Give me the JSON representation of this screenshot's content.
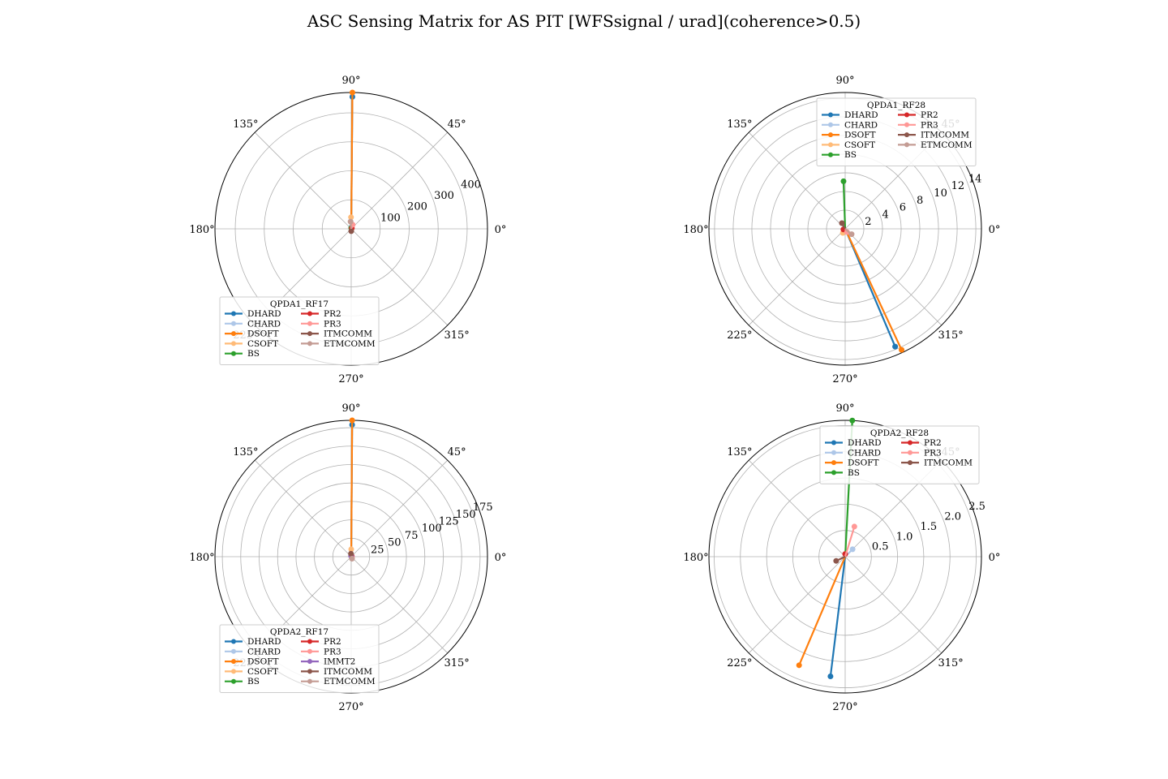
{
  "title": "ASC Sensing Matrix for AS PIT [WFSsignal / urad](coherence>0.5)",
  "chart_data": [
    {
      "type": "polar",
      "legend_title": "QPDA1_RF17",
      "legend_placement": "lower-left",
      "rmax": 470,
      "rticks": [
        100,
        200,
        300,
        400
      ],
      "rtick_labels": [
        "100",
        "200",
        "300",
        "400"
      ],
      "angle_tick_labels": [
        "0°",
        "45°",
        "90°",
        "135°",
        "180°",
        "225°",
        "270°",
        "315°"
      ],
      "series": [
        {
          "name": "DHARD",
          "color": "#1f77b4",
          "r": 455,
          "theta_deg": 89.5
        },
        {
          "name": "CHARD",
          "color": "#aec7e8",
          "r": 6,
          "theta_deg": 90
        },
        {
          "name": "DSOFT",
          "color": "#ff7f0e",
          "r": 470,
          "theta_deg": 89.5
        },
        {
          "name": "CSOFT",
          "color": "#ffbb78",
          "r": 40,
          "theta_deg": 91
        },
        {
          "name": "BS",
          "color": "#2ca02c",
          "r": 3,
          "theta_deg": 90
        },
        {
          "name": "PR2",
          "color": "#d62728",
          "r": 3,
          "theta_deg": 45
        },
        {
          "name": "PR3",
          "color": "#ff9896",
          "r": 15,
          "theta_deg": 70
        },
        {
          "name": "ITMCOMM",
          "color": "#8c564b",
          "r": 8,
          "theta_deg": 270
        },
        {
          "name": "ETMCOMM",
          "color": "#c49c94",
          "r": 25,
          "theta_deg": 95
        }
      ]
    },
    {
      "type": "polar",
      "legend_title": "QPDA1_RF28",
      "legend_placement": "upper-right",
      "rmax": 14.6,
      "rticks": [
        2,
        4,
        6,
        8,
        10,
        12,
        14
      ],
      "rtick_labels": [
        "2",
        "4",
        "6",
        "8",
        "10",
        "12",
        "14"
      ],
      "angle_tick_labels": [
        "0°",
        "45°",
        "90°",
        "135°",
        "180°",
        "225°",
        "270°",
        "315°"
      ],
      "series": [
        {
          "name": "DHARD",
          "color": "#1f77b4",
          "r": 13.7,
          "theta_deg": 293
        },
        {
          "name": "CHARD",
          "color": "#aec7e8",
          "r": 0.3,
          "theta_deg": 250
        },
        {
          "name": "DSOFT",
          "color": "#ff7f0e",
          "r": 14.3,
          "theta_deg": 295
        },
        {
          "name": "CSOFT",
          "color": "#ffbb78",
          "r": 0.5,
          "theta_deg": 240
        },
        {
          "name": "BS",
          "color": "#2ca02c",
          "r": 5.1,
          "theta_deg": 92
        },
        {
          "name": "PR2",
          "color": "#d62728",
          "r": 0.2,
          "theta_deg": 200
        },
        {
          "name": "PR3",
          "color": "#ff9896",
          "r": 0.4,
          "theta_deg": 300
        },
        {
          "name": "ITMCOMM",
          "color": "#8c564b",
          "r": 0.7,
          "theta_deg": 120
        },
        {
          "name": "ETMCOMM",
          "color": "#c49c94",
          "r": 0.9,
          "theta_deg": 320
        }
      ]
    },
    {
      "type": "polar",
      "legend_title": "QPDA2_RF17",
      "legend_placement": "lower-left",
      "rmax": 185,
      "rticks": [
        25,
        50,
        75,
        100,
        125,
        150,
        175
      ],
      "rtick_labels": [
        "25",
        "50",
        "75",
        "100",
        "125",
        "150",
        "175"
      ],
      "angle_tick_labels": [
        "0°",
        "45°",
        "90°",
        "135°",
        "180°",
        "225°",
        "270°",
        "315°"
      ],
      "series": [
        {
          "name": "DHARD",
          "color": "#1f77b4",
          "r": 179,
          "theta_deg": 89.6
        },
        {
          "name": "CHARD",
          "color": "#aec7e8",
          "r": 2,
          "theta_deg": 90
        },
        {
          "name": "DSOFT",
          "color": "#ff7f0e",
          "r": 185,
          "theta_deg": 89.6
        },
        {
          "name": "CSOFT",
          "color": "#ffbb78",
          "r": 10,
          "theta_deg": 90
        },
        {
          "name": "BS",
          "color": "#2ca02c",
          "r": 2,
          "theta_deg": 90
        },
        {
          "name": "PR2",
          "color": "#d62728",
          "r": 1,
          "theta_deg": 45
        },
        {
          "name": "PR3",
          "color": "#ff9896",
          "r": 2,
          "theta_deg": 300
        },
        {
          "name": "IMMT2",
          "color": "#9467bd",
          "r": 1,
          "theta_deg": 100
        },
        {
          "name": "ITMCOMM",
          "color": "#8c564b",
          "r": 4,
          "theta_deg": 95
        },
        {
          "name": "ETMCOMM",
          "color": "#c49c94",
          "r": 3,
          "theta_deg": 290
        }
      ]
    },
    {
      "type": "polar",
      "legend_title": "QPDA2_RF28",
      "legend_placement": "upper-right",
      "rmax": 2.6,
      "rticks": [
        0.5,
        1.0,
        1.5,
        2.0,
        2.5
      ],
      "rtick_labels": [
        "0.5",
        "1.0",
        "1.5",
        "2.0",
        "2.5"
      ],
      "angle_tick_labels": [
        "0°",
        "45°",
        "90°",
        "135°",
        "180°",
        "225°",
        "270°",
        "315°"
      ],
      "series": [
        {
          "name": "DHARD",
          "color": "#1f77b4",
          "r": 2.3,
          "theta_deg": 263
        },
        {
          "name": "CHARD",
          "color": "#aec7e8",
          "r": 0.2,
          "theta_deg": 45
        },
        {
          "name": "DSOFT",
          "color": "#ff7f0e",
          "r": 2.25,
          "theta_deg": 247
        },
        {
          "name": "BS",
          "color": "#2ca02c",
          "r": 2.6,
          "theta_deg": 87
        },
        {
          "name": "PR2",
          "color": "#d62728",
          "r": 0.05,
          "theta_deg": 90
        },
        {
          "name": "PR3",
          "color": "#ff9896",
          "r": 0.6,
          "theta_deg": 73
        },
        {
          "name": "ITMCOMM",
          "color": "#8c564b",
          "r": 0.19,
          "theta_deg": 205
        }
      ]
    }
  ]
}
